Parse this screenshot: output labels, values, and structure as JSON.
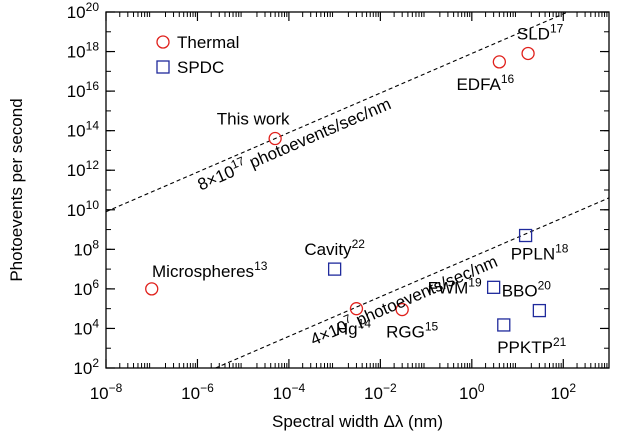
{
  "chart_data": {
    "type": "scatter",
    "xlabel": "Spectral width Δλ (nm)",
    "ylabel": "Photoevents per second",
    "x_scale": "log",
    "y_scale": "log",
    "xlim": [
      1e-08,
      1000
    ],
    "ylim": [
      100,
      1e+20
    ],
    "x_ticks": [
      {
        "value": 1e-08,
        "base": "10",
        "exp": "−8"
      },
      {
        "value": 1e-06,
        "base": "10",
        "exp": "−6"
      },
      {
        "value": 0.0001,
        "base": "10",
        "exp": "−4"
      },
      {
        "value": 0.01,
        "base": "10",
        "exp": "−2"
      },
      {
        "value": 1,
        "base": "10",
        "exp": "0"
      },
      {
        "value": 100,
        "base": "10",
        "exp": "2"
      }
    ],
    "y_ticks": [
      {
        "value": 100.0,
        "base": "10",
        "exp": "2"
      },
      {
        "value": 10000.0,
        "base": "10",
        "exp": "4"
      },
      {
        "value": 1000000.0,
        "base": "10",
        "exp": "6"
      },
      {
        "value": 100000000.0,
        "base": "10",
        "exp": "8"
      },
      {
        "value": 10000000000.0,
        "base": "10",
        "exp": "10"
      },
      {
        "value": 1000000000000.0,
        "base": "10",
        "exp": "12"
      },
      {
        "value": 100000000000000.0,
        "base": "10",
        "exp": "14"
      },
      {
        "value": 1e+16,
        "base": "10",
        "exp": "16"
      },
      {
        "value": 1e+18,
        "base": "10",
        "exp": "18"
      },
      {
        "value": 1e+20,
        "base": "10",
        "exp": "20"
      }
    ],
    "legend": {
      "placement": "top-left",
      "entries": [
        {
          "name": "Thermal",
          "marker": "circle",
          "color": "#e0201b"
        },
        {
          "name": "SPDC",
          "marker": "square",
          "color": "#1f2a9c"
        }
      ]
    },
    "series": [
      {
        "name": "Thermal",
        "marker": "circle",
        "color": "#e0201b",
        "points": [
          {
            "label": "This work",
            "sup": "",
            "x": 5e-05,
            "y": 40000000000000.0,
            "label_pos": "above-left"
          },
          {
            "label": "Microspheres",
            "sup": "13",
            "x": 1e-07,
            "y": 1000000.0,
            "label_pos": "above"
          },
          {
            "label": "Hg",
            "sup": "14",
            "x": 0.003,
            "y": 100000.0,
            "label_pos": "below-left"
          },
          {
            "label": "RGG",
            "sup": "15",
            "x": 0.03,
            "y": 90000.0,
            "label_pos": "below"
          },
          {
            "label": "EDFA",
            "sup": "16",
            "x": 4,
            "y": 3e+17,
            "label_pos": "below-left"
          },
          {
            "label": "SLD",
            "sup": "17",
            "x": 17,
            "y": 8e+17,
            "label_pos": "above"
          }
        ]
      },
      {
        "name": "SPDC",
        "marker": "square",
        "color": "#1f2a9c",
        "points": [
          {
            "label": "Cavity",
            "sup": "22",
            "x": 0.001,
            "y": 10000000.0,
            "label_pos": "above"
          },
          {
            "label": "FWM",
            "sup": "19",
            "x": 3,
            "y": 1200000.0,
            "label_pos": "left"
          },
          {
            "label": "PPLN",
            "sup": "18",
            "x": 15,
            "y": 500000000.0,
            "label_pos": "below-right"
          },
          {
            "label": "BBO",
            "sup": "20",
            "x": 30,
            "y": 80000.0,
            "label_pos": "above-right"
          },
          {
            "label": "PPKTP",
            "sup": "21",
            "x": 5,
            "y": 15000.0,
            "label_pos": "below-right"
          }
        ]
      }
    ],
    "reference_lines": [
      {
        "rate_mantissa": "8",
        "rate_exp": "17",
        "text": "photoevents/sec/nm",
        "slope": 8e+17,
        "style": "dashed"
      },
      {
        "rate_mantissa": "4",
        "rate_exp": "7",
        "text": "photoevents/sec/nm",
        "slope": 40000000.0,
        "style": "dashed"
      }
    ],
    "grid": false
  }
}
